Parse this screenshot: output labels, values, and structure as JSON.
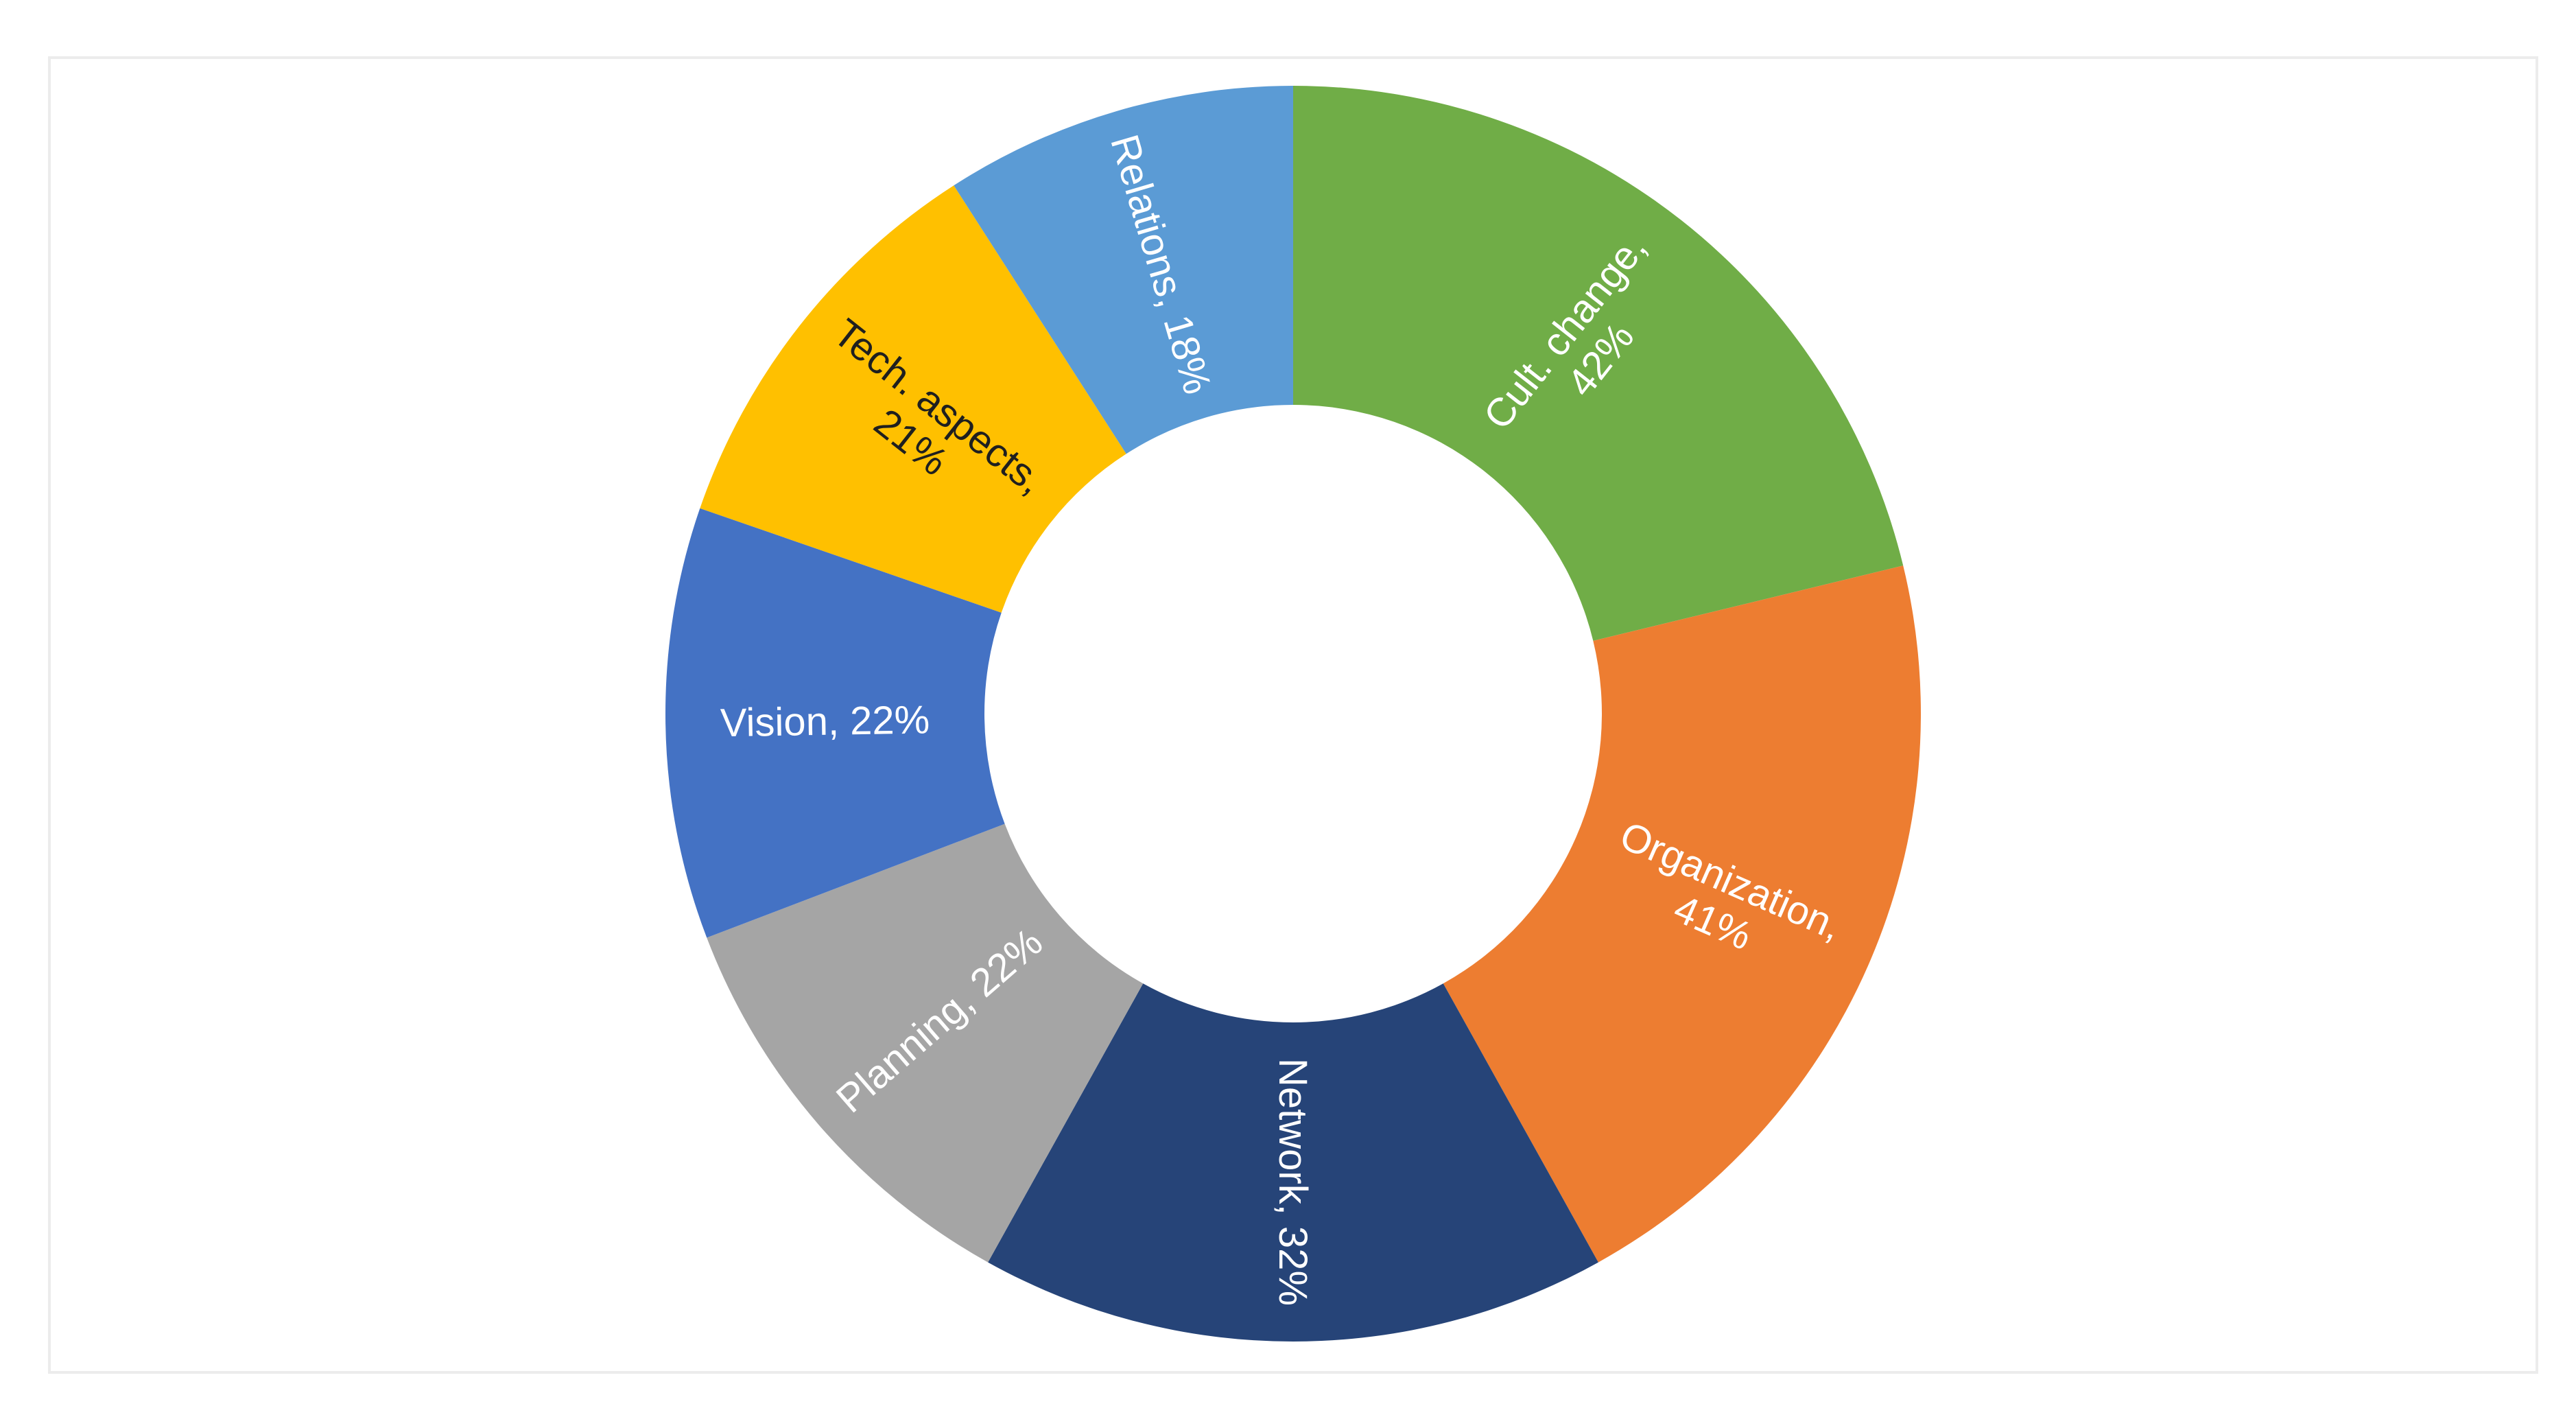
{
  "chart_data": {
    "type": "pie",
    "donut": true,
    "title": "",
    "legend": "none",
    "slices": [
      {
        "label": "Cult. change, 42%",
        "lines": [
          "Cult. change,",
          "42%"
        ],
        "value": 42,
        "color": "#70AD47",
        "text_color": "#FFFFFF"
      },
      {
        "label": "Organization, 41%",
        "lines": [
          "Organization,",
          "41%"
        ],
        "value": 41,
        "color": "#ED7D31",
        "text_color": "#FFFFFF"
      },
      {
        "label": "Network, 32%",
        "lines": [
          "Network, 32%"
        ],
        "value": 32,
        "color": "#264478",
        "text_color": "#FFFFFF"
      },
      {
        "label": "Planning, 22%",
        "lines": [
          "Planning, 22%"
        ],
        "value": 22,
        "color": "#A5A5A5",
        "text_color": "#FFFFFF"
      },
      {
        "label": "Vision, 22%",
        "lines": [
          "Vision, 22%"
        ],
        "value": 22,
        "color": "#4472C4",
        "text_color": "#FFFFFF"
      },
      {
        "label": "Tech. aspects, 21%",
        "lines": [
          "Tech. aspects,",
          "21%"
        ],
        "value": 21,
        "color": "#FFC000",
        "text_color": "#1F1F1F"
      },
      {
        "label": "Relations, 18%",
        "lines": [
          "Relations, 18%"
        ],
        "value": 18,
        "color": "#5B9BD5",
        "text_color": "#FFFFFF"
      }
    ]
  }
}
